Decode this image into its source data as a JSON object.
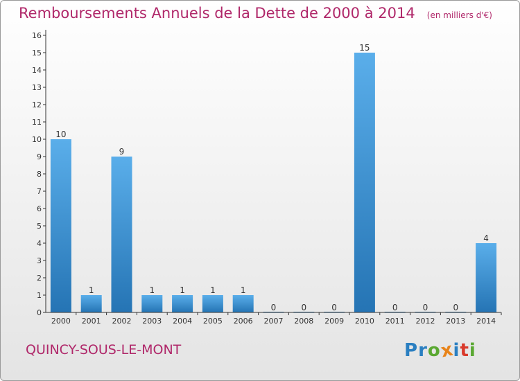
{
  "title": "Remboursements Annuels de la Dette de 2000 à 2014",
  "unit": "(en milliers d'€)",
  "commune": "QUINCY-SOUS-LE-MONT",
  "logo": {
    "letters": [
      {
        "ch": "P",
        "color": "#2a7fc1"
      },
      {
        "ch": "r",
        "color": "#2a7fc1"
      },
      {
        "ch": "o",
        "color": "#5aa832"
      },
      {
        "ch": "x",
        "color": "#e8841a"
      },
      {
        "ch": "i",
        "color": "#2a7fc1"
      },
      {
        "ch": "t",
        "color": "#d93a2b"
      },
      {
        "ch": "i",
        "color": "#5aa832"
      }
    ]
  },
  "colors": {
    "title": "#b0286a",
    "bar_top": "#5aaeea",
    "bar_bottom": "#2574b4",
    "axis": "#333333",
    "label": "#333333"
  },
  "chart_data": {
    "type": "bar",
    "categories": [
      "2000",
      "2001",
      "2002",
      "2003",
      "2004",
      "2005",
      "2006",
      "2007",
      "2008",
      "2009",
      "2010",
      "2011",
      "2012",
      "2013",
      "2014"
    ],
    "values": [
      10,
      1,
      9,
      1,
      1,
      1,
      1,
      0,
      0,
      0,
      15,
      0,
      0,
      0,
      4
    ],
    "data_labels": [
      "10",
      "1",
      "9",
      "1",
      "1",
      "1",
      "1",
      "0",
      "0",
      "0",
      "15",
      "0",
      "0",
      "0",
      "4"
    ],
    "yticks": [
      "0",
      "1",
      "2",
      "3",
      "4",
      "5",
      "6",
      "7",
      "8",
      "9",
      "10",
      "11",
      "12",
      "13",
      "14",
      "15",
      "16"
    ],
    "ylim": [
      0,
      16
    ],
    "xlabel": "",
    "ylabel": "",
    "grid": false
  }
}
